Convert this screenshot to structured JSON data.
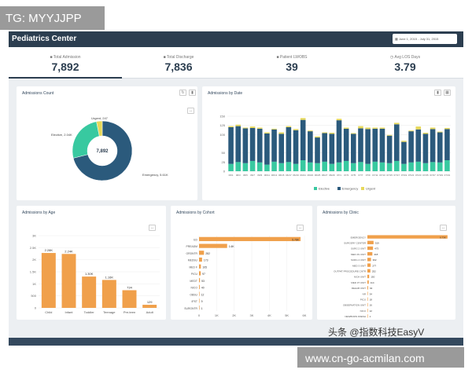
{
  "overlay": {
    "tg": "TG: MYYJJPP",
    "watermark": "头条 @指数科技EasyV",
    "url": "www.cn-go-acmilan.com"
  },
  "header": {
    "title": "Pediatrics Center",
    "date_range": "June 1, 2015 - July 31, 2015"
  },
  "kpis": [
    {
      "label": "Total Admission",
      "value": "7,892"
    },
    {
      "label": "Total Discharge",
      "value": "7,836"
    },
    {
      "label": "Patient LWOBS",
      "value": "39"
    },
    {
      "label": "Avg LOS Days",
      "value": "3.79"
    }
  ],
  "colors": {
    "primary": "#2c3e50",
    "dark_blue": "#2b5a7c",
    "teal": "#38c9a0",
    "yellow": "#e7d85a",
    "orange": "#f0a04b"
  },
  "chart_data": [
    {
      "type": "pie",
      "title": "Admissions Count",
      "center_label": "7,892",
      "slices": [
        {
          "label": "Emergency",
          "value_text": "5.61K",
          "value": 5610
        },
        {
          "label": "Elective",
          "value_text": "2.04K",
          "value": 2040
        },
        {
          "label": "Urgent",
          "value_text": "247",
          "value": 247
        }
      ]
    },
    {
      "type": "bar",
      "stacked": true,
      "title": "Admissions by Date",
      "ylim": [
        0,
        150
      ],
      "yticks": [
        0,
        25,
        50,
        100,
        125,
        150
      ],
      "categories": [
        "06/1",
        "06/3",
        "06/5",
        "06/7",
        "06/9",
        "06/11",
        "06/13",
        "06/15",
        "06/17",
        "06/19",
        "06/21",
        "06/23",
        "06/25",
        "06/27",
        "06/29",
        "07/1",
        "07/3",
        "07/5",
        "07/7",
        "07/9",
        "07/11",
        "07/13",
        "07/15",
        "07/17",
        "07/19",
        "07/21",
        "07/23",
        "07/25",
        "07/27",
        "07/29",
        "07/31"
      ],
      "xtick_labels": [
        "06/1",
        "06/3",
        "06/5",
        "06/7",
        "06/9",
        "06/11",
        "06/13",
        "06/15",
        "06/17",
        "06/19",
        "06/21",
        "06/23",
        "06/25",
        "06/27",
        "06/29",
        "07/1",
        "07/3",
        "07/5",
        "07/7",
        "07/9",
        "07/11",
        "07/13",
        "07/15",
        "07/17",
        "07/19",
        "07/21",
        "07/23",
        "07/25",
        "07/27",
        "07/29",
        "07/31"
      ],
      "series": [
        {
          "name": "Elective",
          "values": [
            20,
            25,
            22,
            28,
            24,
            18,
            26,
            22,
            25,
            20,
            30,
            24,
            22,
            26,
            20,
            24,
            28,
            22,
            25,
            20,
            26,
            24,
            22,
            28,
            20,
            24,
            26,
            22,
            25,
            24,
            30
          ]
        },
        {
          "name": "Emergency",
          "values": [
            100,
            98,
            95,
            90,
            92,
            85,
            88,
            80,
            95,
            92,
            110,
            85,
            70,
            78,
            82,
            115,
            88,
            80,
            92,
            95,
            90,
            92,
            75,
            100,
            60,
            85,
            88,
            80,
            90,
            82,
            85
          ]
        },
        {
          "name": "Urgent",
          "values": [
            3,
            4,
            2,
            4,
            3,
            3,
            2,
            4,
            3,
            3,
            5,
            2,
            3,
            2,
            3,
            4,
            3,
            2,
            6,
            4,
            3,
            3,
            2,
            4,
            3,
            2,
            8,
            3,
            4,
            2,
            3
          ]
        }
      ],
      "legend": [
        "Elective",
        "Emergency",
        "Urgent"
      ]
    },
    {
      "type": "bar",
      "title": "Admissions by Age",
      "categories": [
        "Child",
        "Infant",
        "Toddler",
        "Teenage",
        "Pre-teen",
        "Adult"
      ],
      "values": [
        2280,
        2240,
        1300,
        1160,
        734,
        129
      ],
      "value_labels": [
        "2.28K",
        "2.24K",
        "1.30K",
        "1.16K",
        "734",
        "129"
      ],
      "ylim": [
        0,
        3000
      ],
      "yticks": [
        "0",
        "500",
        "1K",
        "1.5K",
        "2K",
        "2.5K",
        "3K"
      ],
      "ytick_values": [
        0,
        500,
        1000,
        1500,
        2000,
        2500,
        3000
      ]
    },
    {
      "type": "bar",
      "orientation": "horizontal",
      "title": "Admissions by Cohort",
      "categories": [
        "ED",
        "PREADM",
        "ORDNTR",
        "MEDSU",
        "MED F",
        "PICU",
        "MEDT",
        "NICO",
        "OBSU",
        "IPST",
        "SURGNTR"
      ],
      "values": [
        5780,
        1600,
        282,
        173,
        105,
        97,
        53,
        40,
        12,
        9,
        1
      ],
      "value_labels": [
        "5.78K",
        "1.6K",
        "282",
        "173",
        "105",
        "97",
        "53",
        "40",
        "12",
        "9",
        "1"
      ],
      "xlim": [
        0,
        6000
      ],
      "xticks": [
        "0",
        "1K",
        "2K",
        "3K",
        "4K",
        "5K",
        "6K"
      ],
      "xtick_values": [
        0,
        1000,
        2000,
        3000,
        4000,
        5000,
        6000
      ]
    },
    {
      "type": "bar",
      "orientation": "horizontal",
      "title": "Admissions by Clinic",
      "categories": [
        "EMERGENCY",
        "SURGERY CENTER",
        "SURG 2 UNIT",
        "MED 4S UNIT",
        "SURG 4 UNIT",
        "MED 3 UNIT",
        "OUTPAT PROCEDURE CNTR",
        "NICH UNIT",
        "MED 3T UNIT",
        "REHAB UNIT",
        "NR",
        "PICU",
        "OBSERVATION UNIT",
        "NICU",
        "NEWBORN FRESH"
      ],
      "values": [
        6730,
        519,
        473,
        418,
        302,
        277,
        252,
        150,
        114,
        64,
        34,
        18,
        16,
        12,
        1
      ],
      "value_labels": [
        "6.73K",
        "519",
        "473",
        "418",
        "302",
        "277",
        "252",
        "150",
        "114",
        "64",
        "34",
        "18",
        "16",
        "12",
        "1"
      ],
      "xlim": [
        0,
        7000
      ]
    }
  ]
}
